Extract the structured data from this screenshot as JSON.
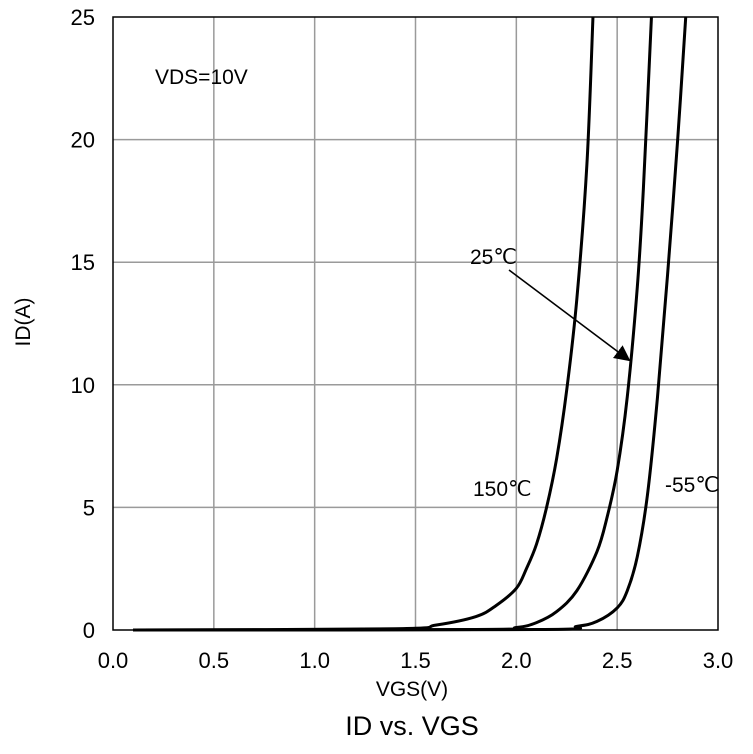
{
  "chart_data": {
    "type": "line",
    "title": "ID vs. VGS",
    "xlabel": "VGS(V)",
    "ylabel": "ID(A)",
    "xlim": [
      0.0,
      3.0
    ],
    "ylim": [
      0,
      25
    ],
    "xticks": [
      "0.0",
      "0.5",
      "1.0",
      "1.5",
      "2.0",
      "2.5",
      "3.0"
    ],
    "yticks": [
      "0",
      "5",
      "10",
      "15",
      "20",
      "25"
    ],
    "grid": true,
    "condition_note": "VDS=10V",
    "series": [
      {
        "name": "150℃",
        "x": [
          0.1,
          1.4,
          1.6,
          1.8,
          1.9,
          2.0,
          2.05,
          2.1,
          2.15,
          2.2,
          2.25,
          2.3,
          2.35,
          2.38
        ],
        "y": [
          0,
          0.05,
          0.2,
          0.55,
          1.0,
          1.7,
          2.5,
          3.5,
          5.0,
          7.0,
          9.8,
          13.5,
          19.0,
          25.0
        ]
      },
      {
        "name": "25℃",
        "x": [
          0.1,
          1.8,
          2.0,
          2.1,
          2.2,
          2.3,
          2.4,
          2.45,
          2.5,
          2.55,
          2.6,
          2.63,
          2.67
        ],
        "y": [
          0,
          0.02,
          0.1,
          0.3,
          0.75,
          1.6,
          3.2,
          4.6,
          6.5,
          9.5,
          14.0,
          18.0,
          25.0
        ]
      },
      {
        "name": "-55℃",
        "x": [
          0.1,
          2.1,
          2.3,
          2.4,
          2.5,
          2.55,
          2.6,
          2.65,
          2.7,
          2.75,
          2.8,
          2.84
        ],
        "y": [
          0,
          0.02,
          0.15,
          0.35,
          0.9,
          1.6,
          3.0,
          5.5,
          9.5,
          14.5,
          20.0,
          25.0
        ]
      }
    ],
    "annotations": [
      {
        "text": "25℃",
        "arrow": true,
        "arrow_target": {
          "x": 2.56,
          "y": 11.0
        }
      }
    ],
    "series_labels": [
      "150℃",
      "25℃",
      "-55℃"
    ]
  }
}
